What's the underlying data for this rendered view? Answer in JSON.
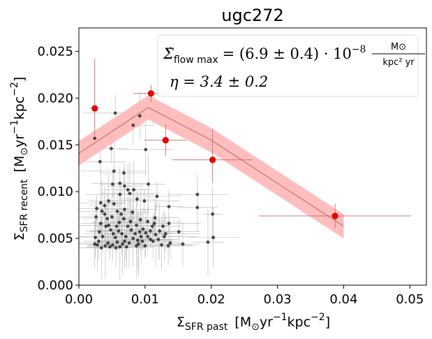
{
  "chart_data": {
    "type": "scatter",
    "title": "ugc272",
    "xlabel": {
      "sym": "Σ",
      "sub": "SFR past",
      "units": "[M",
      "units_sun": "⊙",
      "units_rest": "yr",
      "e1": "−1",
      "kpc": "kpc",
      "e2": "−2",
      "close": "]"
    },
    "ylabel": {
      "sym": "Σ",
      "sub": "SFR recent",
      "units": "[M",
      "units_sun": "⊙",
      "units_rest": "yr",
      "e1": "−1",
      "kpc": "kpc",
      "e2": "−2",
      "close": "]"
    },
    "xlim": [
      0.0,
      0.0525
    ],
    "ylim": [
      0.0,
      0.0275
    ],
    "xticks": [
      0.0,
      0.01,
      0.02,
      0.03,
      0.04,
      0.05
    ],
    "xtick_labels": [
      "0.00",
      "0.01",
      "0.02",
      "0.03",
      "0.04",
      "0.05"
    ],
    "yticks": [
      0.0,
      0.005,
      0.01,
      0.015,
      0.02,
      0.025
    ],
    "ytick_labels": [
      "0.000",
      "0.005",
      "0.010",
      "0.015",
      "0.020",
      "0.025"
    ],
    "annotation": {
      "line1_lhs": "Σ̇",
      "line1_sub": "flow max",
      "line1_eq": "= (6.9 ± 0.4) · 10",
      "line1_exp": "−8",
      "line1_num": "M⊙",
      "line1_den": "kpc² yr",
      "line2": "η = 3.4 ± 0.2"
    },
    "colors": {
      "red": "#e60000",
      "band": "#ffb3b3",
      "line": "#c86464",
      "black": "#222222",
      "err_gray": "#b3b3b3",
      "err_red": "#cc6666"
    },
    "model_line": {
      "x": [
        0.0,
        0.0105,
        0.02,
        0.04
      ],
      "y": [
        0.0141,
        0.019,
        0.0155,
        0.0063
      ],
      "band_halfwidth": 0.0013
    },
    "binned_points": [
      {
        "x": 0.0024,
        "y": 0.0189,
        "xerr": 0.0004,
        "yerr_lo": 0.0029,
        "yerr_hi": 0.0053
      },
      {
        "x": 0.0109,
        "y": 0.0205,
        "xerr": 0.0027,
        "yerr_lo": 0.0009,
        "yerr_hi": 0.0009
      },
      {
        "x": 0.0131,
        "y": 0.0155,
        "xerr": 0.0032,
        "yerr_lo": 0.0017,
        "yerr_hi": 0.0017
      },
      {
        "x": 0.0202,
        "y": 0.0134,
        "xerr": 0.0061,
        "yerr_lo": 0.0025,
        "yerr_hi": 0.0033
      },
      {
        "x": 0.0387,
        "y": 0.0074,
        "xerr": 0.0115,
        "yerr_lo": 0.0013,
        "yerr_hi": 0.0013
      }
    ],
    "pixel_points": [
      {
        "x": 0.0024,
        "y": 0.0157
      },
      {
        "x": 0.0032,
        "y": 0.0132
      },
      {
        "x": 0.0049,
        "y": 0.0146
      },
      {
        "x": 0.0055,
        "y": 0.0184
      },
      {
        "x": 0.0082,
        "y": 0.0171
      },
      {
        "x": 0.0092,
        "y": 0.0181
      },
      {
        "x": 0.0101,
        "y": 0.0145
      },
      {
        "x": 0.0105,
        "y": 0.0108
      },
      {
        "x": 0.0053,
        "y": 0.0122
      },
      {
        "x": 0.0068,
        "y": 0.012
      },
      {
        "x": 0.0051,
        "y": 0.0108
      },
      {
        "x": 0.0062,
        "y": 0.0109
      },
      {
        "x": 0.0069,
        "y": 0.0106
      },
      {
        "x": 0.0062,
        "y": 0.0097
      },
      {
        "x": 0.0074,
        "y": 0.0102
      },
      {
        "x": 0.0083,
        "y": 0.0102
      },
      {
        "x": 0.0077,
        "y": 0.0098
      },
      {
        "x": 0.0088,
        "y": 0.0092
      },
      {
        "x": 0.0099,
        "y": 0.009
      },
      {
        "x": 0.0118,
        "y": 0.0095
      },
      {
        "x": 0.0136,
        "y": 0.0084
      },
      {
        "x": 0.0179,
        "y": 0.0097
      },
      {
        "x": 0.0179,
        "y": 0.0083
      },
      {
        "x": 0.0202,
        "y": 0.0076
      },
      {
        "x": 0.0203,
        "y": 0.0051
      },
      {
        "x": 0.0195,
        "y": 0.0046
      },
      {
        "x": 0.0136,
        "y": 0.0066
      },
      {
        "x": 0.0151,
        "y": 0.0057
      },
      {
        "x": 0.0138,
        "y": 0.0045
      },
      {
        "x": 0.0135,
        "y": 0.0042
      },
      {
        "x": 0.0157,
        "y": 0.0044
      },
      {
        "x": 0.0129,
        "y": 0.0052
      },
      {
        "x": 0.0122,
        "y": 0.0058
      },
      {
        "x": 0.0116,
        "y": 0.0054
      },
      {
        "x": 0.0108,
        "y": 0.0049
      },
      {
        "x": 0.0111,
        "y": 0.0063
      },
      {
        "x": 0.0104,
        "y": 0.0068
      },
      {
        "x": 0.0115,
        "y": 0.0072
      },
      {
        "x": 0.0097,
        "y": 0.006
      },
      {
        "x": 0.0101,
        "y": 0.0056
      },
      {
        "x": 0.0094,
        "y": 0.0052
      },
      {
        "x": 0.0089,
        "y": 0.0048
      },
      {
        "x": 0.0087,
        "y": 0.0042
      },
      {
        "x": 0.0092,
        "y": 0.0057
      },
      {
        "x": 0.0085,
        "y": 0.0055
      },
      {
        "x": 0.0079,
        "y": 0.0059
      },
      {
        "x": 0.0074,
        "y": 0.0063
      },
      {
        "x": 0.0078,
        "y": 0.0068
      },
      {
        "x": 0.0081,
        "y": 0.0078
      },
      {
        "x": 0.0069,
        "y": 0.0081
      },
      {
        "x": 0.0064,
        "y": 0.0076
      },
      {
        "x": 0.0068,
        "y": 0.0071
      },
      {
        "x": 0.0061,
        "y": 0.0067
      },
      {
        "x": 0.0057,
        "y": 0.0063
      },
      {
        "x": 0.006,
        "y": 0.0058
      },
      {
        "x": 0.0065,
        "y": 0.0055
      },
      {
        "x": 0.0071,
        "y": 0.0052
      },
      {
        "x": 0.0069,
        "y": 0.0047
      },
      {
        "x": 0.0066,
        "y": 0.0044
      },
      {
        "x": 0.0062,
        "y": 0.0041
      },
      {
        "x": 0.0058,
        "y": 0.0046
      },
      {
        "x": 0.0055,
        "y": 0.0051
      },
      {
        "x": 0.0052,
        "y": 0.0055
      },
      {
        "x": 0.0048,
        "y": 0.0059
      },
      {
        "x": 0.0045,
        "y": 0.0064
      },
      {
        "x": 0.0043,
        "y": 0.0071
      },
      {
        "x": 0.0039,
        "y": 0.0076
      },
      {
        "x": 0.0035,
        "y": 0.0079
      },
      {
        "x": 0.0033,
        "y": 0.0066
      },
      {
        "x": 0.0031,
        "y": 0.0057
      },
      {
        "x": 0.0036,
        "y": 0.0052
      },
      {
        "x": 0.003,
        "y": 0.0047
      },
      {
        "x": 0.0025,
        "y": 0.0051
      },
      {
        "x": 0.0024,
        "y": 0.0044
      },
      {
        "x": 0.0028,
        "y": 0.0043
      },
      {
        "x": 0.0034,
        "y": 0.004
      },
      {
        "x": 0.004,
        "y": 0.0042
      },
      {
        "x": 0.0044,
        "y": 0.0045
      },
      {
        "x": 0.0047,
        "y": 0.0041
      },
      {
        "x": 0.0051,
        "y": 0.0043
      },
      {
        "x": 0.0056,
        "y": 0.004
      },
      {
        "x": 0.0072,
        "y": 0.0041
      },
      {
        "x": 0.0076,
        "y": 0.0045
      },
      {
        "x": 0.0082,
        "y": 0.005
      },
      {
        "x": 0.009,
        "y": 0.0044
      },
      {
        "x": 0.0096,
        "y": 0.0047
      },
      {
        "x": 0.01,
        "y": 0.0042
      },
      {
        "x": 0.0104,
        "y": 0.0052
      },
      {
        "x": 0.0112,
        "y": 0.0047
      },
      {
        "x": 0.012,
        "y": 0.0049
      },
      {
        "x": 0.0125,
        "y": 0.0043
      },
      {
        "x": 0.0045,
        "y": 0.009
      },
      {
        "x": 0.0053,
        "y": 0.0087
      },
      {
        "x": 0.0033,
        "y": 0.0088
      },
      {
        "x": 0.0039,
        "y": 0.0085
      },
      {
        "x": 0.0027,
        "y": 0.0082
      },
      {
        "x": 0.0026,
        "y": 0.0073
      },
      {
        "x": 0.0041,
        "y": 0.0063
      },
      {
        "x": 0.005,
        "y": 0.0073
      },
      {
        "x": 0.0058,
        "y": 0.0079
      },
      {
        "x": 0.0087,
        "y": 0.0064
      },
      {
        "x": 0.0093,
        "y": 0.007
      },
      {
        "x": 0.0108,
        "y": 0.0058
      },
      {
        "x": 0.0114,
        "y": 0.0066
      },
      {
        "x": 0.0127,
        "y": 0.0063
      },
      {
        "x": 0.0131,
        "y": 0.0055
      }
    ]
  }
}
